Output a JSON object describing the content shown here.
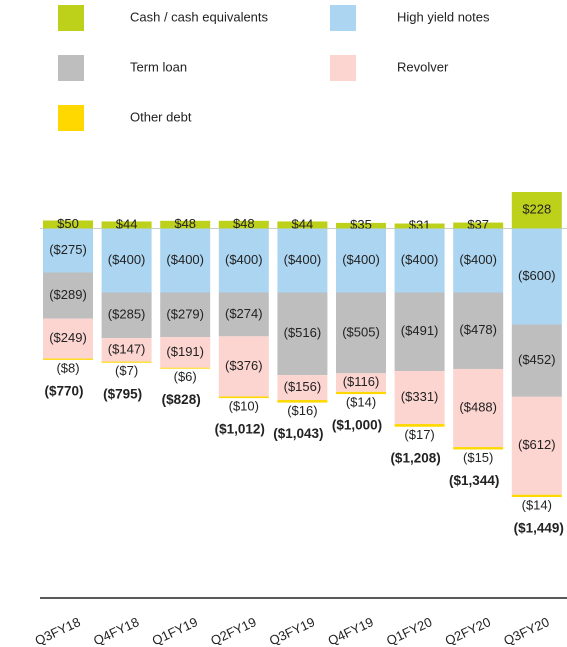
{
  "chart_data": {
    "type": "stacked-bar",
    "categories": [
      "Q3FY18",
      "Q4FY18",
      "Q1FY19",
      "Q2FY19",
      "Q3FY19",
      "Q4FY19",
      "Q1FY20",
      "Q2FY20",
      "Q3FY20"
    ],
    "series": [
      {
        "name": "Cash / cash equivalents",
        "color": "#bdd01a",
        "values": [
          50,
          44,
          48,
          48,
          44,
          35,
          31,
          37,
          228
        ],
        "value_labels": [
          "$50",
          "$44",
          "$48",
          "$48",
          "$44",
          "$35",
          "$31",
          "$37",
          "$228"
        ]
      },
      {
        "name": "High yield notes",
        "color": "#abd5f1",
        "values": [
          -275,
          -400,
          -400,
          -400,
          -400,
          -400,
          -400,
          -400,
          -600
        ],
        "value_labels": [
          "($275)",
          "($400)",
          "($400)",
          "($400)",
          "($400)",
          "($400)",
          "($400)",
          "($400)",
          "($600)"
        ]
      },
      {
        "name": "Term loan",
        "color": "#bebebe",
        "values": [
          -289,
          -285,
          -279,
          -274,
          -516,
          -505,
          -491,
          -478,
          -452
        ],
        "value_labels": [
          "($289)",
          "($285)",
          "($279)",
          "($274)",
          "($516)",
          "($505)",
          "($491)",
          "($478)",
          "($452)"
        ]
      },
      {
        "name": "Revolver",
        "color": "#fcd5d1",
        "values": [
          -249,
          -147,
          -191,
          -376,
          -156,
          -116,
          -331,
          -488,
          -612
        ],
        "value_labels": [
          "($249)",
          "($147)",
          "($191)",
          "($376)",
          "($156)",
          "($116)",
          "($331)",
          "($488)",
          "($612)"
        ]
      },
      {
        "name": "Other debt",
        "color": "#ffd800",
        "values": [
          -8,
          -7,
          -6,
          -10,
          -16,
          -14,
          -17,
          -15,
          -14
        ],
        "value_labels": [
          "($8)",
          "($7)",
          "($6)",
          "($10)",
          "($16)",
          "($14)",
          "($17)",
          "($15)",
          "($14)"
        ]
      }
    ],
    "totals": {
      "values": [
        -770,
        -795,
        -828,
        -1012,
        -1043,
        -1000,
        -1208,
        -1344,
        -1449
      ],
      "value_labels": [
        "($770)",
        "($795)",
        "($828)",
        "($1,012)",
        "($1,043)",
        "($1,000)",
        "($1,208)",
        "($1,344)",
        "($1,449)"
      ]
    }
  }
}
